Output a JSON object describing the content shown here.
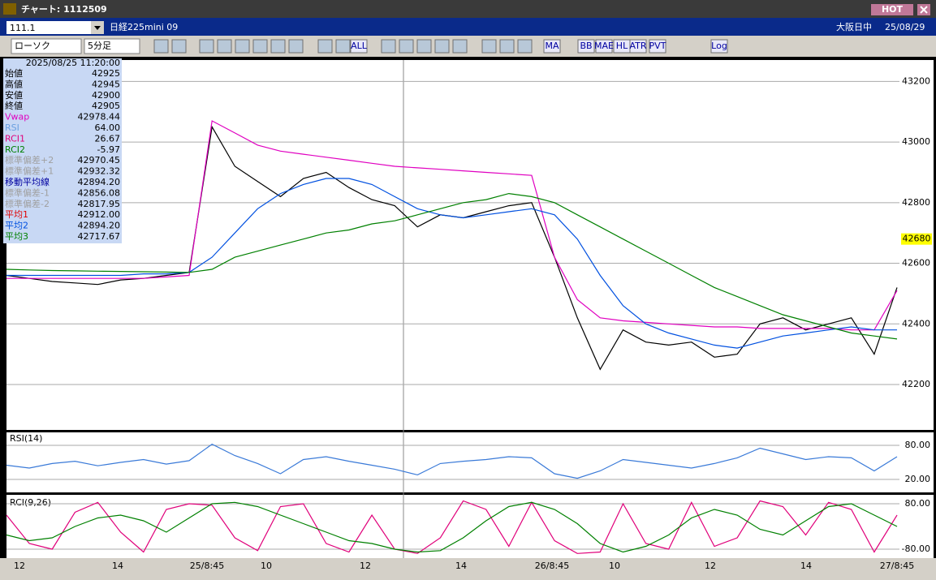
{
  "window": {
    "title": "チャート: 1112509",
    "hot": "HOT"
  },
  "header": {
    "code": "111.1",
    "name": "日経225mini 09",
    "session": "大阪日中",
    "date": "25/08/29"
  },
  "toolbar": {
    "chart_kind": "ローソク",
    "interval": "5分足",
    "buttons": [
      "ALL",
      "MA",
      "BB",
      "MAE",
      "HL",
      "ATR",
      "PVT",
      "Log"
    ]
  },
  "info_panel": {
    "timestamp": "2025/08/25  11:20:00",
    "rows": [
      {
        "label": "始値",
        "value": "42925",
        "color": "#000000"
      },
      {
        "label": "高値",
        "value": "42945",
        "color": "#000000"
      },
      {
        "label": "安値",
        "value": "42900",
        "color": "#000000"
      },
      {
        "label": "終値",
        "value": "42905",
        "color": "#000000"
      },
      {
        "label": "Vwap",
        "value": "42978.44",
        "color": "#e000c0"
      },
      {
        "label": "RSI",
        "value": "64.00",
        "color": "#6aa0e0"
      },
      {
        "label": "RCI1",
        "value": "26.67",
        "color": "#e0007a"
      },
      {
        "label": "RCI2",
        "value": "-5.97",
        "color": "#008000"
      },
      {
        "label": "標準偏差+2",
        "value": "42970.45",
        "color": "#a0a0a0"
      },
      {
        "label": "標準偏差+1",
        "value": "42932.32",
        "color": "#a0a0a0"
      },
      {
        "label": "移動平均線",
        "value": "42894.20",
        "color": "#0000a0"
      },
      {
        "label": "標準偏差-1",
        "value": "42856.08",
        "color": "#a0a0a0"
      },
      {
        "label": "標準偏差-2",
        "value": "42817.95",
        "color": "#a0a0a0"
      },
      {
        "label": "平均1",
        "value": "42912.00",
        "color": "#e00000"
      },
      {
        "label": "平均2",
        "value": "42894.20",
        "color": "#0050e0"
      },
      {
        "label": "平均3",
        "value": "42717.67",
        "color": "#008000"
      }
    ]
  },
  "chart_data": [
    {
      "type": "line",
      "ylim": [
        42050,
        43260
      ],
      "yticks": [
        42200,
        42400,
        42600,
        42800,
        43000,
        43200
      ],
      "current_price": 42680,
      "x_labels": [
        "12",
        "14",
        "25/8:45",
        "10",
        "12",
        "14",
        "26/8:45",
        "10",
        "12",
        "14",
        "27/8:45"
      ],
      "series": [
        {
          "color": "#000000",
          "values": [
            42560,
            42550,
            42540,
            42535,
            42530,
            42545,
            42550,
            42560,
            42570,
            43050,
            42920,
            42870,
            42820,
            42880,
            42900,
            42850,
            42810,
            42790,
            42720,
            42760,
            42750,
            42770,
            42790,
            42800,
            42620,
            42420,
            42250,
            42380,
            42340,
            42330,
            42340,
            42290,
            42300,
            42400,
            42420,
            42380,
            42400,
            42420,
            42300,
            42520
          ]
        },
        {
          "color": "#e000c0",
          "values": [
            42550,
            42550,
            42550,
            42550,
            42550,
            42550,
            42550,
            42555,
            42560,
            43070,
            43030,
            42990,
            42970,
            42960,
            42950,
            42940,
            42930,
            42920,
            42915,
            42910,
            42905,
            42900,
            42895,
            42890,
            42620,
            42480,
            42420,
            42410,
            42405,
            42400,
            42395,
            42390,
            42390,
            42385,
            42385,
            42385,
            42385,
            42380,
            42380,
            42510
          ]
        },
        {
          "color": "#0050e0",
          "values": [
            42560,
            42560,
            42560,
            42560,
            42560,
            42560,
            42565,
            42565,
            42570,
            42620,
            42700,
            42780,
            42830,
            42860,
            42880,
            42880,
            42860,
            42820,
            42780,
            42760,
            42750,
            42760,
            42770,
            42780,
            42760,
            42680,
            42560,
            42460,
            42400,
            42370,
            42350,
            42330,
            42320,
            42340,
            42360,
            42370,
            42380,
            42390,
            42380,
            42380
          ]
        },
        {
          "color": "#008000",
          "values": [
            42580,
            42578,
            42576,
            42575,
            42574,
            42573,
            42572,
            42571,
            42570,
            42580,
            42620,
            42640,
            42660,
            42680,
            42700,
            42710,
            42730,
            42740,
            42760,
            42780,
            42800,
            42810,
            42830,
            42820,
            42800,
            42760,
            42720,
            42680,
            42640,
            42600,
            42560,
            42520,
            42490,
            42460,
            42430,
            42410,
            42390,
            42370,
            42360,
            42350
          ]
        }
      ]
    },
    {
      "type": "line",
      "title": "RSI(14)",
      "ylim": [
        0,
        100
      ],
      "yticks": [
        {
          "value": 80,
          "label": "80.00"
        },
        {
          "value": 20,
          "label": "20.00"
        }
      ],
      "series": [
        {
          "color": "#3a7ad8",
          "values": [
            45,
            40,
            48,
            52,
            44,
            50,
            55,
            47,
            53,
            82,
            62,
            48,
            30,
            55,
            60,
            52,
            45,
            38,
            28,
            48,
            52,
            55,
            60,
            58,
            30,
            22,
            35,
            55,
            50,
            45,
            40,
            48,
            58,
            75,
            65,
            55,
            60,
            58,
            35,
            60
          ]
        }
      ]
    },
    {
      "type": "line",
      "title": "RCI(9,26)",
      "ylim": [
        -100,
        100
      ],
      "yticks": [
        {
          "value": 80,
          "label": "80.00"
        },
        {
          "value": -80,
          "label": "-80.00"
        }
      ],
      "series": [
        {
          "color": "#e0007a",
          "values": [
            40,
            -60,
            -80,
            50,
            85,
            -20,
            -90,
            60,
            80,
            75,
            -40,
            -85,
            70,
            80,
            -60,
            -90,
            40,
            -80,
            -95,
            -40,
            90,
            60,
            -70,
            85,
            -50,
            -95,
            -90,
            80,
            -60,
            -80,
            85,
            -70,
            -40,
            90,
            70,
            -30,
            85,
            60,
            -90,
            40
          ]
        },
        {
          "color": "#008000",
          "values": [
            -30,
            -50,
            -40,
            0,
            30,
            40,
            20,
            -20,
            30,
            80,
            85,
            70,
            40,
            10,
            -20,
            -50,
            -60,
            -80,
            -90,
            -85,
            -40,
            20,
            70,
            85,
            60,
            10,
            -60,
            -90,
            -70,
            -30,
            30,
            60,
            40,
            -10,
            -30,
            20,
            70,
            80,
            40,
            0
          ]
        }
      ]
    }
  ]
}
